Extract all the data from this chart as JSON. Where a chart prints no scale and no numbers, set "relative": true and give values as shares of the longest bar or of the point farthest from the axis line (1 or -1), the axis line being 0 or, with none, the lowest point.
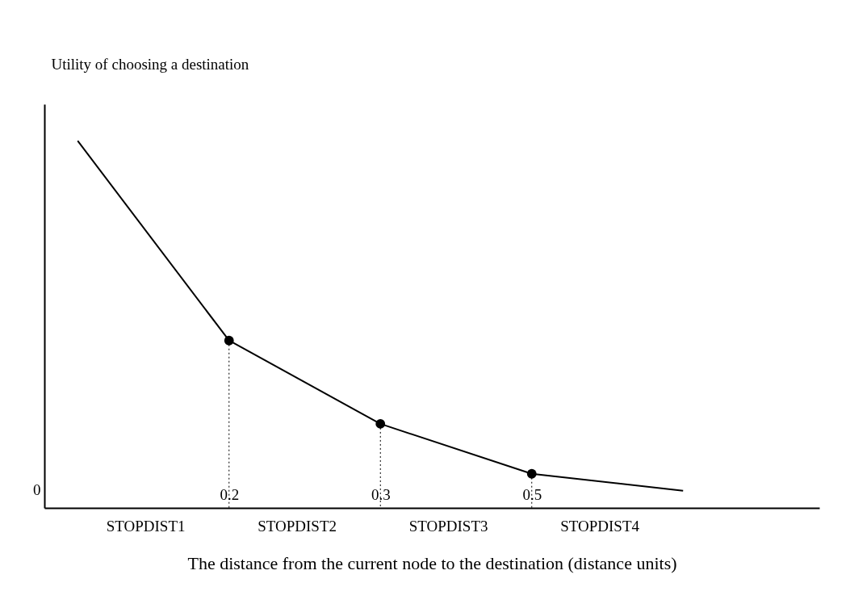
{
  "chart_data": {
    "type": "line",
    "relative": true,
    "xlabel": "The distance from the current node to the destination (distance units)",
    "ylabel": "Utility of choosing a destination",
    "categories": [
      null,
      "0.2",
      "0.3",
      "0.5",
      null
    ],
    "series": [
      {
        "type": "line",
        "color": "#000000",
        "values": [
          1,
          0.456,
          0.229,
          0.093,
          0.047
        ]
      },
      {
        "type": "lollipop",
        "color": "#000000",
        "values": [
          null,
          0.456,
          0.229,
          0.093,
          null
        ],
        "marker": "circle",
        "line_style": "dotted"
      }
    ],
    "annotations": [
      "0",
      "STOPDIST1",
      "STOPDIST2",
      "STOPDIST3",
      "STOPDIST4"
    ]
  }
}
